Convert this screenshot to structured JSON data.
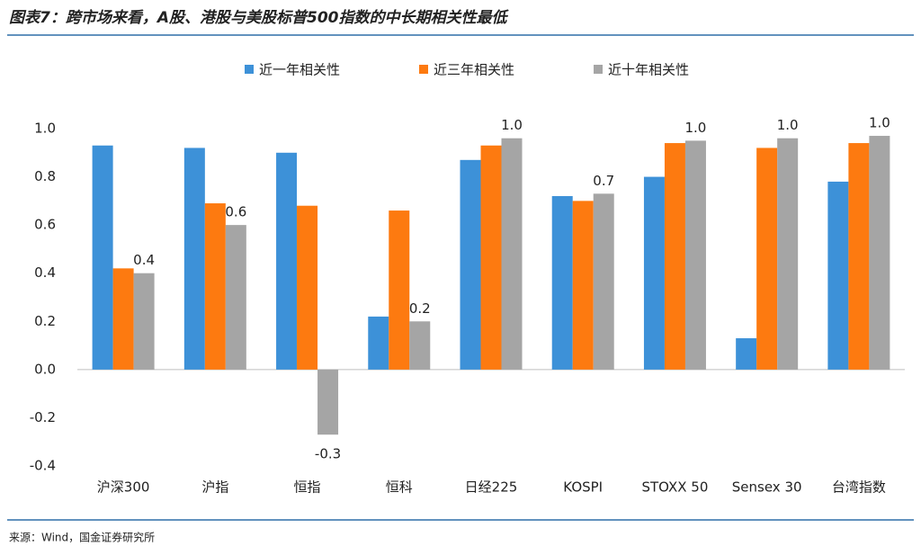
{
  "chart_data": {
    "type": "bar",
    "title": "图表7：跨市场来看，A股、港股与美股标普500指数的中长期相关性最低",
    "source": "来源：Wind，国金证券研究所",
    "categories": [
      "沪深300",
      "沪指",
      "恒指",
      "恒科",
      "日经225",
      "KOSPI",
      "STOXX 50",
      "Sensex 30",
      "台湾指数"
    ],
    "series": [
      {
        "name": "近一年相关性",
        "color": "#3d91d8",
        "values": [
          0.93,
          0.92,
          0.9,
          0.22,
          0.87,
          0.72,
          0.8,
          0.13,
          0.78
        ]
      },
      {
        "name": "近三年相关性",
        "color": "#fd7a10",
        "values": [
          0.42,
          0.69,
          0.68,
          0.66,
          0.93,
          0.7,
          0.94,
          0.92,
          0.94
        ]
      },
      {
        "name": "近十年相关性",
        "color": "#a5a5a5",
        "values": [
          0.4,
          0.6,
          -0.27,
          0.2,
          0.96,
          0.73,
          0.95,
          0.96,
          0.97
        ],
        "value_labels": [
          "0.4",
          "0.6",
          "-0.3",
          "0.2",
          "1.0",
          "0.7",
          "1.0",
          "1.0",
          "1.0"
        ]
      }
    ],
    "ylim": [
      -0.4,
      1.0
    ],
    "yticks": [
      -0.4,
      -0.2,
      {
        "value": 0,
        "label": "0.0"
      },
      0.2,
      0.4,
      0.6,
      0.8,
      {
        "value": 1,
        "label": "1.0"
      }
    ],
    "legend": "top"
  }
}
